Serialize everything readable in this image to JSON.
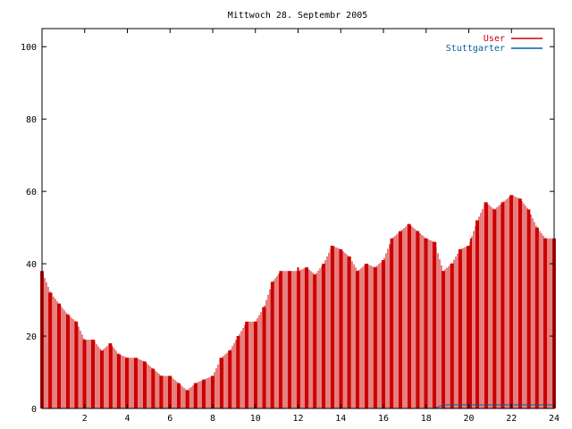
{
  "chart_data": {
    "type": "bar",
    "title": "Mittwoch 28. Septembr 2005",
    "xlabel": "",
    "ylabel": "",
    "xlim": [
      0,
      24
    ],
    "ylim": [
      0,
      105
    ],
    "x_ticks": [
      2,
      4,
      6,
      8,
      10,
      12,
      14,
      16,
      18,
      20,
      22,
      24
    ],
    "y_ticks": [
      0,
      20,
      40,
      60,
      80,
      100
    ],
    "grid": false,
    "legend_position": "top-right",
    "colors": {
      "User": "#cc0000",
      "Stuttgarter": "#0060a0"
    },
    "x": [
      0.0,
      0.4,
      0.8,
      1.2,
      1.6,
      2.0,
      2.4,
      2.8,
      3.2,
      3.6,
      4.0,
      4.4,
      4.8,
      5.2,
      5.6,
      6.0,
      6.4,
      6.8,
      7.2,
      7.6,
      8.0,
      8.4,
      8.8,
      9.2,
      9.6,
      10.0,
      10.4,
      10.8,
      11.2,
      11.6,
      12.0,
      12.4,
      12.8,
      13.2,
      13.6,
      14.0,
      14.4,
      14.8,
      15.2,
      15.6,
      16.0,
      16.4,
      16.8,
      17.2,
      17.6,
      18.0,
      18.4,
      18.8,
      19.2,
      19.6,
      20.0,
      20.4,
      20.8,
      21.2,
      21.6,
      22.0,
      22.4,
      22.8,
      23.2,
      23.6,
      24.0
    ],
    "series": [
      {
        "name": "User",
        "values": [
          38,
          32,
          29,
          26,
          24,
          19,
          19,
          16,
          18,
          15,
          14,
          14,
          13,
          11,
          9,
          9,
          7,
          5,
          7,
          8,
          9,
          14,
          16,
          20,
          24,
          24,
          28,
          35,
          38,
          38,
          38,
          39,
          37,
          40,
          45,
          44,
          42,
          38,
          40,
          39,
          41,
          47,
          49,
          51,
          49,
          47,
          46,
          38,
          40,
          44,
          45,
          52,
          57,
          55,
          57,
          59,
          58,
          55,
          50,
          47,
          47
        ],
        "spikes": [
          {
            "x": 12.0,
            "value": 39
          },
          {
            "x": 20.1,
            "value": 47
          }
        ]
      },
      {
        "name": "Stuttgarter",
        "values": [
          0,
          0,
          0,
          0,
          0,
          0,
          0,
          0,
          0,
          0,
          0,
          0,
          0,
          0,
          0,
          0,
          0,
          0,
          0,
          0,
          0,
          0,
          0,
          0,
          0,
          0,
          0,
          0,
          0,
          0,
          0,
          0,
          0,
          0,
          0,
          0,
          0,
          0,
          0,
          0,
          0,
          0,
          0,
          0,
          0,
          0,
          0,
          1,
          1,
          1,
          1,
          1,
          1,
          1,
          1,
          1,
          1,
          1,
          1,
          1,
          1
        ]
      }
    ]
  }
}
